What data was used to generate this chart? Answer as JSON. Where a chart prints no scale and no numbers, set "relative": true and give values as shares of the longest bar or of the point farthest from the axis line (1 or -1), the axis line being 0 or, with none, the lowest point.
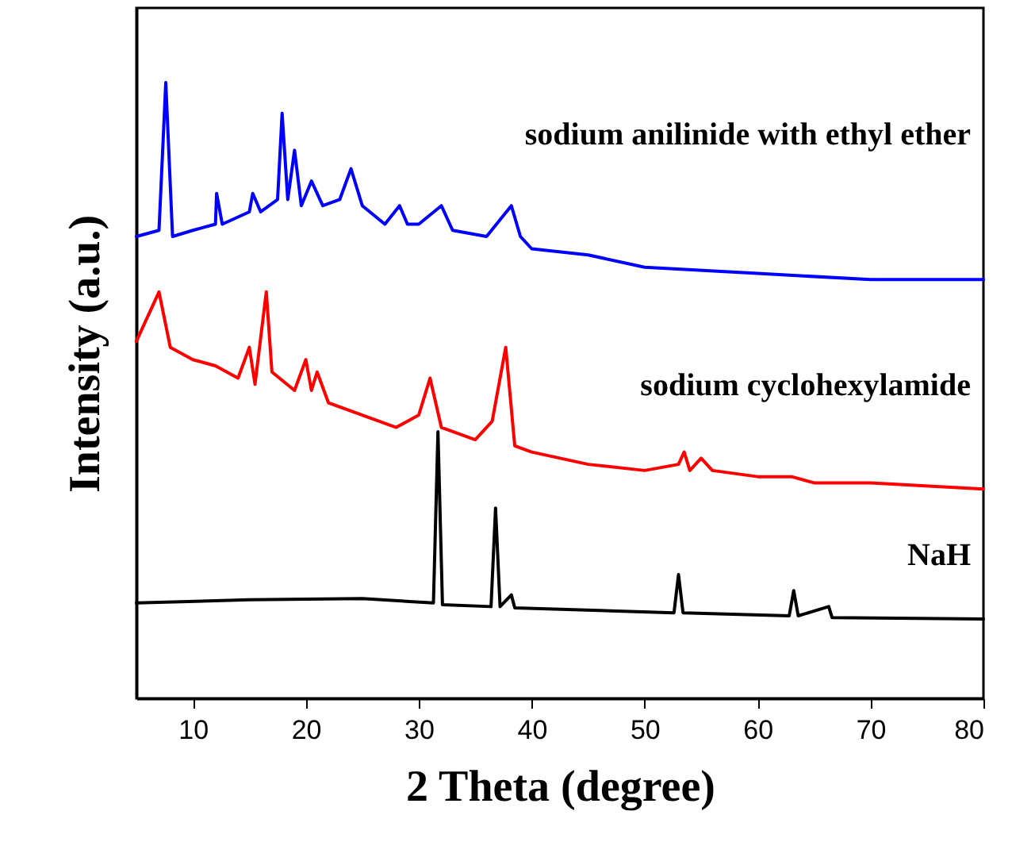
{
  "chart_data": {
    "type": "line",
    "relative": true,
    "xlabel": "2 Theta (degree)",
    "ylabel": "Intensity (a.u.)",
    "xlim": [
      5,
      80
    ],
    "xticks": [
      10,
      20,
      30,
      40,
      50,
      60,
      70,
      80
    ],
    "tick_labels": "x",
    "legend": false,
    "grid": false,
    "line_style": "solid",
    "marker": "none",
    "series": [
      {
        "name": "sodium anilinide with ethyl ether",
        "color": "#0000ff",
        "x": [
          5,
          7,
          7.6,
          8.2,
          10,
          12,
          12.1,
          12.6,
          15,
          15.3,
          16,
          17.5,
          17.9,
          18.4,
          19,
          19.6,
          20.5,
          21.5,
          23,
          24,
          25,
          27,
          28.3,
          29,
          30,
          32,
          33,
          36,
          38.2,
          39,
          40,
          45,
          50,
          60,
          70,
          80
        ],
        "values": [
          0.75,
          0.76,
          1,
          0.75,
          0.76,
          0.77,
          0.82,
          0.77,
          0.79,
          0.82,
          0.79,
          0.81,
          0.95,
          0.81,
          0.89,
          0.8,
          0.84,
          0.8,
          0.81,
          0.86,
          0.8,
          0.77,
          0.8,
          0.77,
          0.77,
          0.8,
          0.76,
          0.75,
          0.8,
          0.75,
          0.73,
          0.72,
          0.7,
          0.69,
          0.68,
          0.68
        ]
      },
      {
        "name": "sodium cyclohexylamide",
        "color": "#ff0000",
        "x": [
          5,
          7,
          8,
          10,
          12,
          14,
          15,
          15.5,
          16.5,
          17,
          19,
          20,
          20.5,
          21,
          22,
          25,
          28,
          30,
          31,
          32,
          35,
          36.5,
          37.7,
          38.5,
          40,
          45,
          50,
          53,
          53.5,
          54,
          55,
          56,
          60,
          63,
          65,
          70,
          80
        ],
        "values": [
          0.58,
          0.66,
          0.57,
          0.55,
          0.54,
          0.52,
          0.57,
          0.51,
          0.66,
          0.53,
          0.5,
          0.55,
          0.5,
          0.53,
          0.48,
          0.46,
          0.44,
          0.46,
          0.52,
          0.44,
          0.42,
          0.45,
          0.57,
          0.41,
          0.4,
          0.38,
          0.37,
          0.38,
          0.4,
          0.37,
          0.39,
          0.37,
          0.36,
          0.36,
          0.35,
          0.35,
          0.34
        ]
      },
      {
        "name": "NaH",
        "color": "#000000",
        "x": [
          5,
          15,
          25,
          31.3,
          31.7,
          32.1,
          36.4,
          36.8,
          37.2,
          38.2,
          38.5,
          52.6,
          53,
          53.4,
          62.8,
          63.2,
          63.6,
          66.3,
          66.6,
          80
        ],
        "values": [
          0.155,
          0.16,
          0.162,
          0.155,
          0.433,
          0.152,
          0.149,
          0.309,
          0.149,
          0.168,
          0.147,
          0.139,
          0.201,
          0.139,
          0.134,
          0.175,
          0.134,
          0.149,
          0.131,
          0.129
        ]
      }
    ]
  }
}
